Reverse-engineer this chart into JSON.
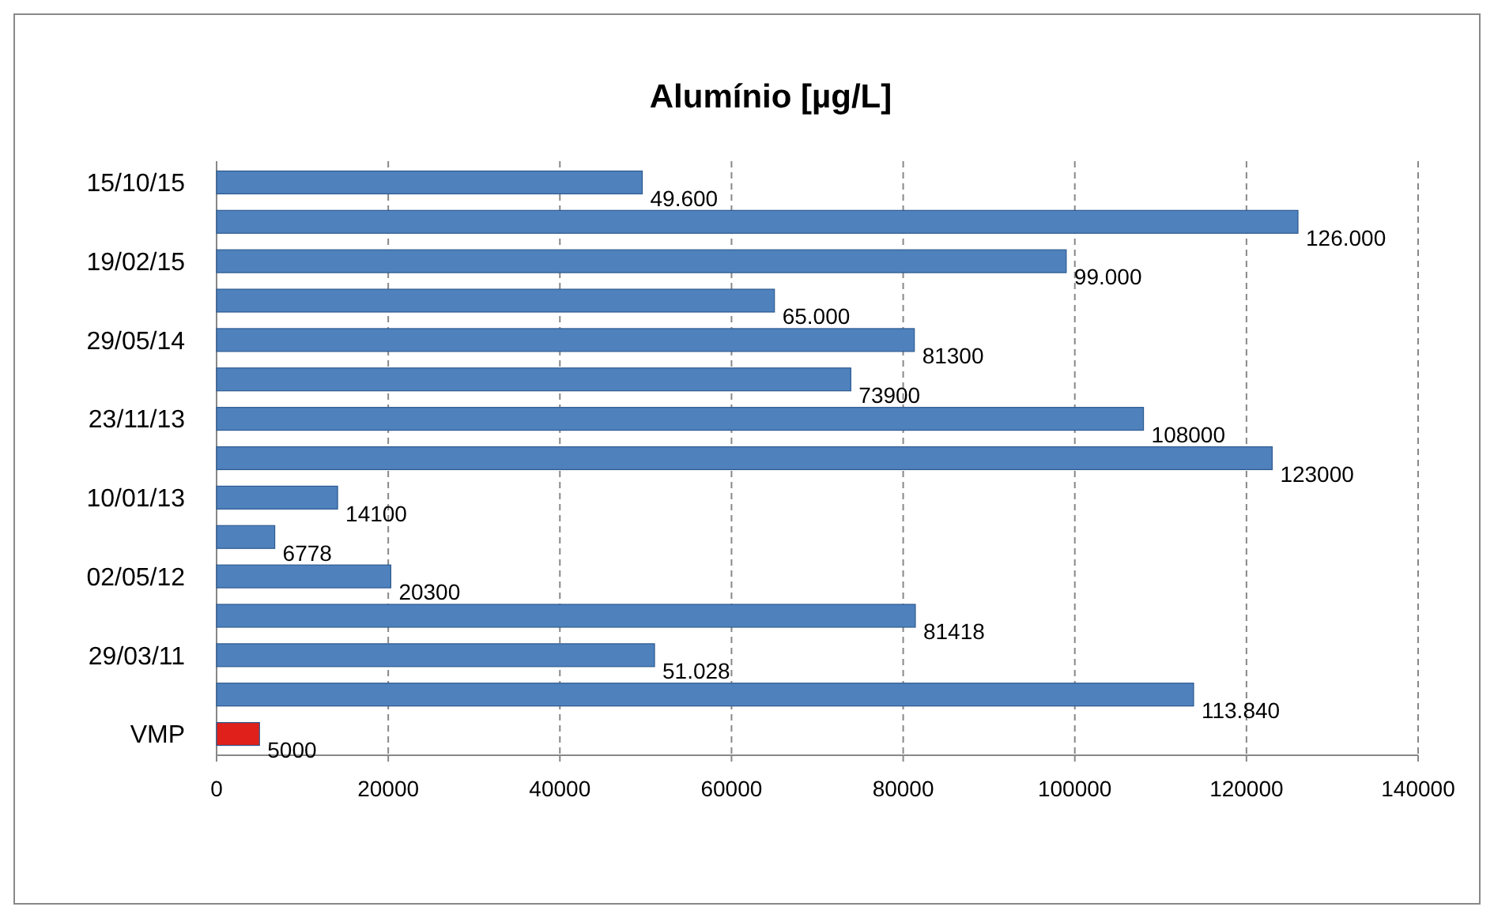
{
  "chart_data": {
    "type": "bar",
    "orientation": "horizontal",
    "title": "Alumínio [µg/L]",
    "categories": [
      "15/10/15",
      null,
      "19/02/15",
      null,
      "29/05/14",
      null,
      "23/11/13",
      null,
      "10/01/13",
      null,
      "02/05/12",
      null,
      "29/03/11",
      null,
      "VMP"
    ],
    "values": [
      49600,
      126000,
      99000,
      65000,
      81300,
      73900,
      108000,
      123000,
      14100,
      6778,
      20300,
      81418,
      51028,
      113840,
      5000
    ],
    "value_labels": [
      "49.600",
      "126.000",
      "99.000",
      "65.000",
      "81300",
      "73900",
      "108000",
      "123000",
      "14100",
      "6778",
      "20300",
      "81418",
      "51.028",
      "113.840",
      "5000"
    ],
    "colors": [
      "#4f81bd",
      "#4f81bd",
      "#4f81bd",
      "#4f81bd",
      "#4f81bd",
      "#4f81bd",
      "#4f81bd",
      "#4f81bd",
      "#4f81bd",
      "#4f81bd",
      "#4f81bd",
      "#4f81bd",
      "#4f81bd",
      "#4f81bd",
      "#e0201b"
    ],
    "xlim": [
      0,
      140000
    ],
    "xticks": [
      0,
      20000,
      40000,
      60000,
      80000,
      100000,
      120000,
      140000
    ],
    "grid": "x"
  }
}
